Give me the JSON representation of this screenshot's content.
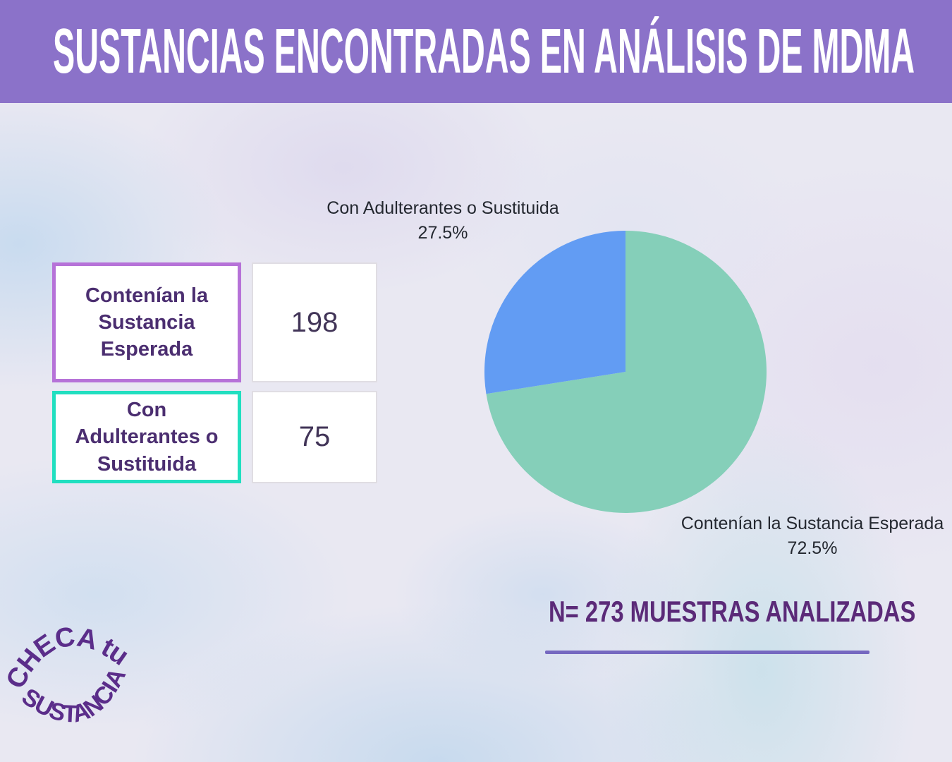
{
  "header": {
    "title": "SUSTANCIAS ENCONTRADAS EN ANÁLISIS DE MDMA",
    "bg_color": "#8b72c9",
    "text_color": "#ffffff"
  },
  "stats": {
    "rows": [
      {
        "label": "Contenían la Sustancia Esperada",
        "value": "198",
        "border_color": "#b672d8"
      },
      {
        "label": "Con Adulterantes o Sustituida",
        "value": "75",
        "border_color": "#21dfc0"
      }
    ]
  },
  "chart_data": {
    "type": "pie",
    "title": "Sustancias encontradas en análisis de MDMA",
    "slices": [
      {
        "label": "Contenían la Sustancia Esperada",
        "pct": 72.5,
        "count": 198,
        "color": "#85cfb9"
      },
      {
        "label": "Con Adulterantes o Sustituida",
        "pct": 27.5,
        "count": 75,
        "color": "#629cf3"
      }
    ],
    "start_angle_deg": -90,
    "direction": "clockwise",
    "total_samples": 273,
    "legend_position": "labels-adjacent"
  },
  "pie_labels": {
    "top": {
      "name": "Con Adulterantes o Sustituida",
      "pct": "27.5%"
    },
    "bottom": {
      "name": "Contenían la Sustancia Esperada",
      "pct": "72.5%"
    }
  },
  "footer": {
    "note": "N= 273 MUESTRAS ANALIZADAS",
    "color": "#5b2a78",
    "underline_color": "#7568c0"
  },
  "logo": {
    "arc_top": "CHECA tu",
    "arc_bottom": "SUSTANCIA",
    "color": "#5b2d8a"
  }
}
